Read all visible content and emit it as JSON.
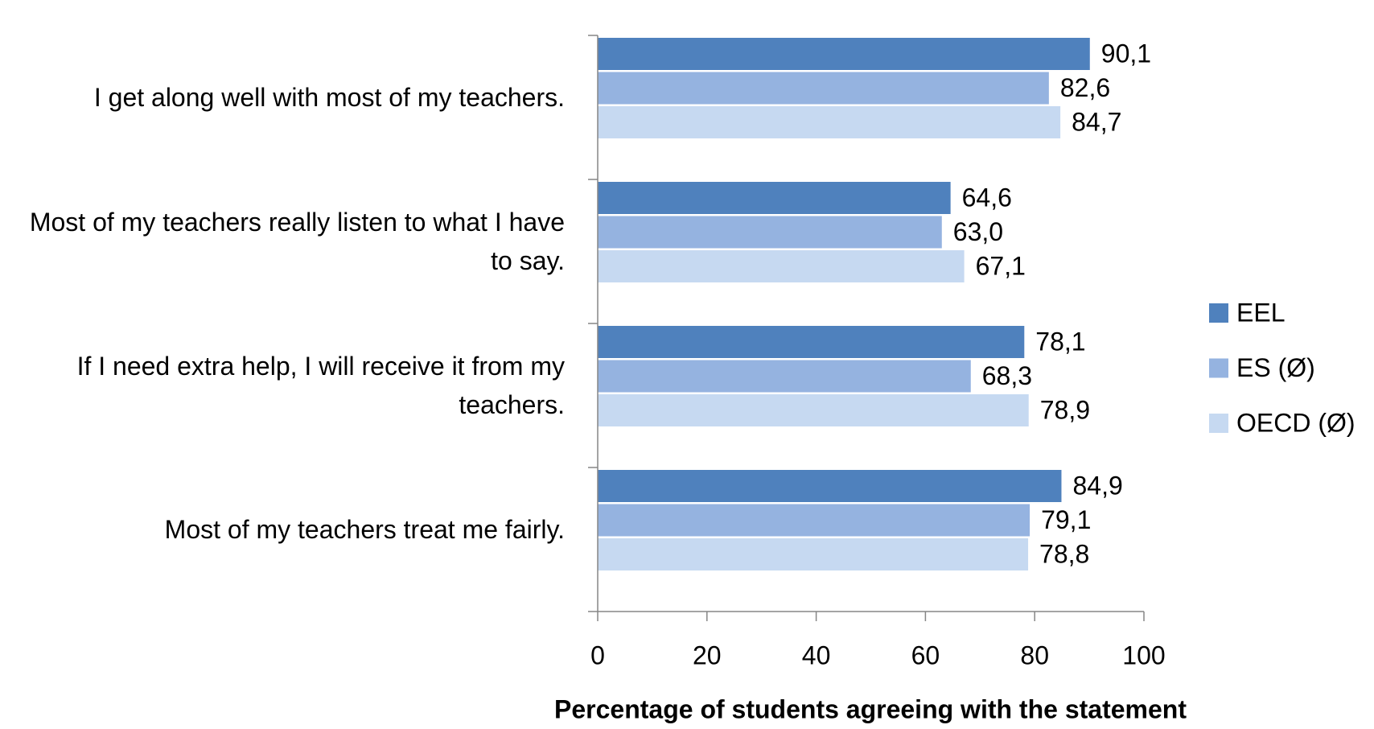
{
  "chart_data": {
    "type": "bar",
    "orientation": "horizontal",
    "categories": [
      "I get along well with most of my teachers.",
      "Most of my teachers really listen to what I have to say.",
      "If I need extra help, I will receive it from my teachers.",
      "Most of my teachers treat me fairly."
    ],
    "series": [
      {
        "name": "EEL",
        "color": "#4f81bd",
        "values": [
          90.1,
          64.6,
          78.1,
          84.9
        ],
        "value_labels": [
          "90,1",
          "64,6",
          "78,1",
          "84,9"
        ]
      },
      {
        "name": "ES (Ø)",
        "color": "#95b3e0",
        "values": [
          82.6,
          63.0,
          68.3,
          79.1
        ],
        "value_labels": [
          "82,6",
          "63,0",
          "68,3",
          "79,1"
        ]
      },
      {
        "name": "OECD (Ø)",
        "color": "#c6d9f1",
        "values": [
          84.7,
          67.1,
          78.9,
          78.8
        ],
        "value_labels": [
          "84,7",
          "67,1",
          "78,9",
          "78,8"
        ]
      }
    ],
    "xlabel": "Percentage of students agreeing with the statement",
    "xlim": [
      0,
      100
    ],
    "xticks": [
      0,
      20,
      40,
      60,
      80,
      100
    ],
    "legend": "right"
  }
}
